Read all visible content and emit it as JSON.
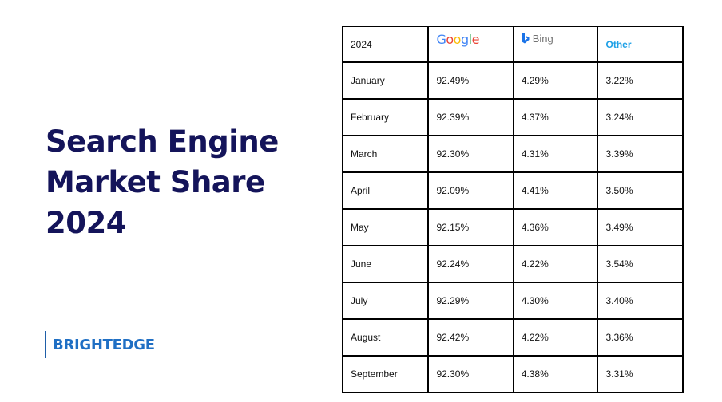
{
  "title_lines": [
    "Search Engine",
    "Market Share",
    "2024"
  ],
  "brand": "BRIGHTEDGE",
  "colors": {
    "title": "#14145a",
    "brand": "#1f6fc4",
    "other_header": "#1ea0e6",
    "bing_icon": "#1a73e8"
  },
  "icons": {
    "google": "google-logo",
    "bing": "bing-logo"
  },
  "chart_data": {
    "type": "table",
    "columns": [
      "2024",
      "Google",
      "Bing",
      "Other"
    ],
    "rows": [
      [
        "January",
        "92.49%",
        "4.29%",
        "3.22%"
      ],
      [
        "February",
        "92.39%",
        "4.37%",
        "3.24%"
      ],
      [
        "March",
        "92.30%",
        "4.31%",
        "3.39%"
      ],
      [
        "April",
        "92.09%",
        "4.41%",
        "3.50%"
      ],
      [
        "May",
        "92.15%",
        "4.36%",
        "3.49%"
      ],
      [
        "June",
        "92.24%",
        "4.22%",
        "3.54%"
      ],
      [
        "July",
        "92.29%",
        "4.30%",
        "3.40%"
      ],
      [
        "August",
        "92.42%",
        "4.22%",
        "3.36%"
      ],
      [
        "September",
        "92.30%",
        "4.38%",
        "3.31%"
      ]
    ]
  }
}
